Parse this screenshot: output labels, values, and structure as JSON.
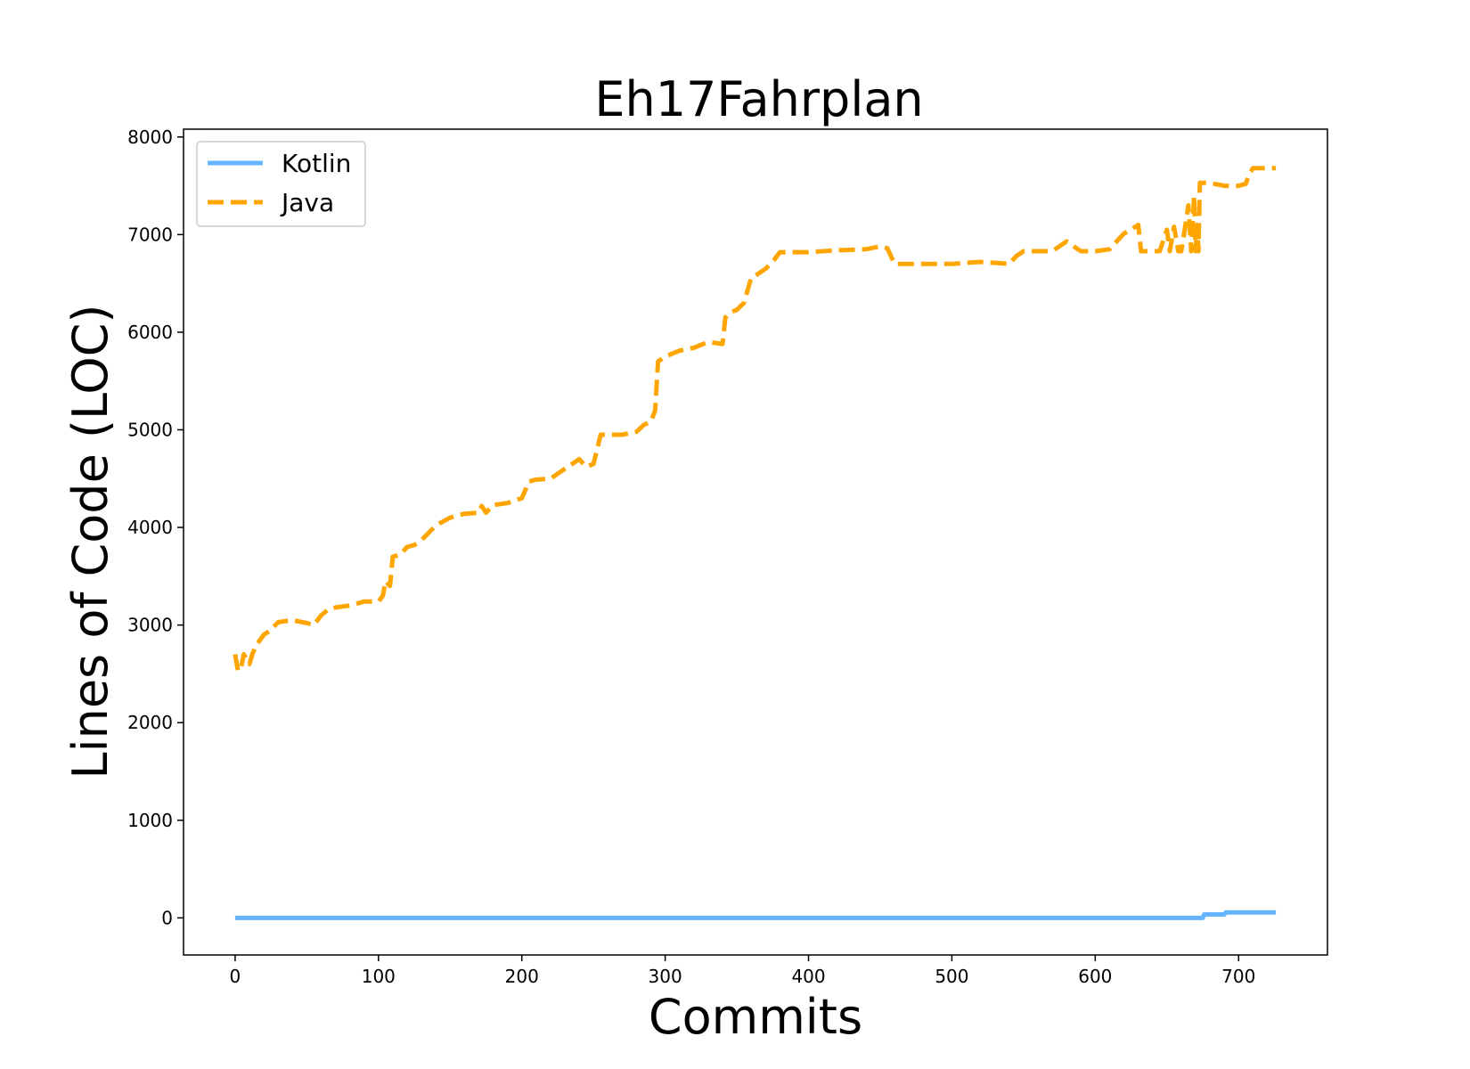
{
  "chart_data": {
    "type": "line",
    "title": "Eh17Fahrplan",
    "xlabel": "Commits",
    "ylabel": "Lines of Code (LOC)",
    "xlim": [
      -36,
      762
    ],
    "ylim": [
      -380,
      8080
    ],
    "xticks": [
      0,
      100,
      200,
      300,
      400,
      500,
      600,
      700
    ],
    "yticks": [
      0,
      1000,
      2000,
      3000,
      4000,
      5000,
      6000,
      7000,
      8000
    ],
    "xtick_labels": [
      "0",
      "100",
      "200",
      "300",
      "400",
      "500",
      "600",
      "700"
    ],
    "ytick_labels": [
      "0",
      "1000",
      "2000",
      "3000",
      "4000",
      "5000",
      "6000",
      "7000",
      "8000"
    ],
    "legend_position": "upper-left",
    "grid": false,
    "series": [
      {
        "name": "Kotlin",
        "color": "#66b3ff",
        "style": "solid",
        "x": [
          0,
          675,
          676,
          690,
          691,
          726
        ],
        "y": [
          0,
          0,
          35,
          35,
          55,
          55
        ]
      },
      {
        "name": "Java",
        "color": "#ffa500",
        "style": "dashed",
        "x": [
          0,
          2,
          4,
          6,
          10,
          12,
          15,
          20,
          25,
          30,
          40,
          50,
          55,
          60,
          65,
          70,
          80,
          90,
          100,
          103,
          105,
          108,
          110,
          115,
          120,
          125,
          130,
          140,
          150,
          160,
          170,
          172,
          175,
          180,
          190,
          200,
          205,
          210,
          220,
          230,
          240,
          245,
          250,
          255,
          260,
          270,
          280,
          285,
          290,
          293,
          295,
          300,
          310,
          320,
          330,
          340,
          342,
          345,
          350,
          355,
          360,
          365,
          370,
          375,
          380,
          390,
          400,
          420,
          440,
          450,
          455,
          460,
          470,
          480,
          500,
          520,
          540,
          545,
          550,
          560,
          570,
          575,
          580,
          590,
          600,
          610,
          620,
          625,
          630,
          632,
          635,
          640,
          645,
          650,
          652,
          655,
          658,
          660,
          663,
          665,
          667,
          669,
          670,
          671,
          672,
          673,
          675,
          680,
          690,
          700,
          705,
          707,
          710,
          712,
          715,
          720,
          726
        ],
        "y": [
          2700,
          2530,
          2550,
          2700,
          2600,
          2700,
          2800,
          2900,
          2950,
          3030,
          3050,
          3020,
          3000,
          3100,
          3160,
          3180,
          3200,
          3240,
          3240,
          3300,
          3450,
          3400,
          3700,
          3720,
          3800,
          3820,
          3870,
          4020,
          4100,
          4140,
          4150,
          4220,
          4150,
          4230,
          4250,
          4300,
          4470,
          4490,
          4500,
          4600,
          4700,
          4620,
          4650,
          4950,
          4950,
          4950,
          4980,
          5050,
          5080,
          5200,
          5700,
          5750,
          5810,
          5840,
          5900,
          5880,
          6150,
          6200,
          6230,
          6300,
          6560,
          6600,
          6650,
          6720,
          6820,
          6820,
          6820,
          6840,
          6850,
          6880,
          6860,
          6700,
          6700,
          6700,
          6700,
          6720,
          6700,
          6780,
          6830,
          6830,
          6830,
          6880,
          6930,
          6830,
          6830,
          6850,
          7010,
          7050,
          7100,
          6830,
          6830,
          6830,
          6830,
          7050,
          6830,
          7080,
          6830,
          6830,
          7100,
          7300,
          6830,
          7400,
          6830,
          7100,
          6830,
          7530,
          7530,
          7530,
          7500,
          7500,
          7520,
          7600,
          7680,
          7680,
          7680,
          7680,
          7680
        ]
      }
    ]
  }
}
